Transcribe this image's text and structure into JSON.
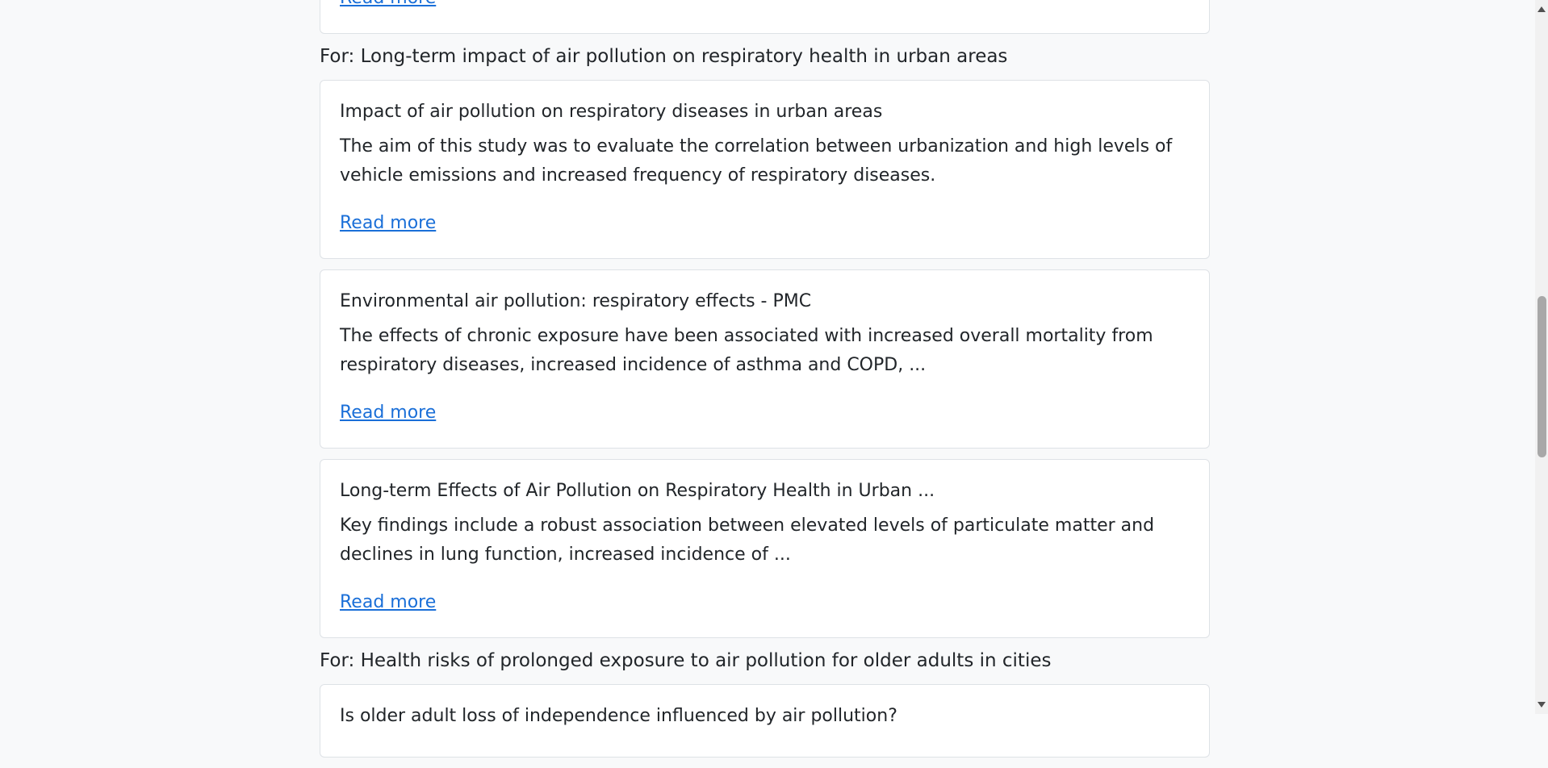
{
  "sections": [
    {
      "results": [
        {
          "link": "Read more"
        }
      ]
    },
    {
      "query": "For: Long-term impact of air pollution on respiratory health in urban areas",
      "results": [
        {
          "title": "Impact of air pollution on respiratory diseases in urban areas",
          "snippet": "The aim of this study was to evaluate the correlation between urbanization and high levels of vehicle emissions and increased frequency of respiratory diseases.",
          "link": "Read more"
        },
        {
          "title": "Environmental air pollution: respiratory effects - PMC",
          "snippet": "The effects of chronic exposure have been associated with increased overall mortality from respiratory diseases, increased incidence of asthma and COPD, ...",
          "link": "Read more"
        },
        {
          "title": "Long-term Effects of Air Pollution on Respiratory Health in Urban ...",
          "snippet": "Key findings include a robust association between elevated levels of particulate matter and declines in lung function, increased incidence of ...",
          "link": "Read more"
        }
      ]
    },
    {
      "query": "For: Health risks of prolonged exposure to air pollution for older adults in cities",
      "results": [
        {
          "title": "Is older adult loss of independence influenced by air pollution?"
        }
      ]
    }
  ]
}
